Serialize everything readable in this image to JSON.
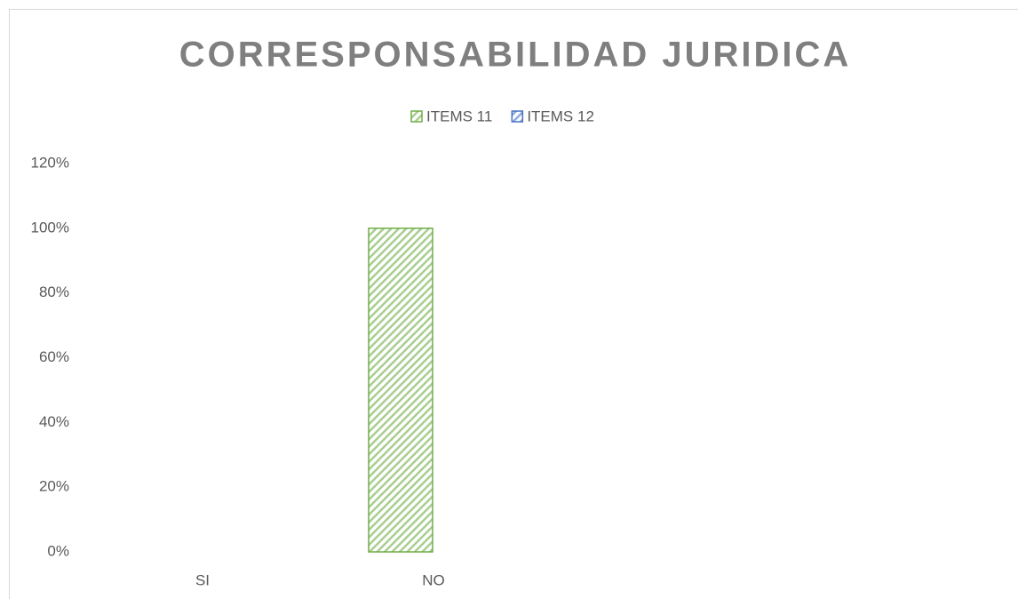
{
  "chart_data": {
    "type": "bar",
    "title": "CORRESPONSABILIDAD JURIDICA",
    "categories": [
      "SI",
      "NO",
      null,
      null
    ],
    "series": [
      {
        "name": "ITEMS 11",
        "color": "#70ad47",
        "values": [
          0,
          100,
          null,
          null
        ]
      },
      {
        "name": "ITEMS 12",
        "color": "#4472c4",
        "values": [
          0,
          0,
          null,
          null
        ]
      }
    ],
    "ylim": [
      0,
      120
    ],
    "yticks": [
      {
        "value": 0,
        "label": "0%"
      },
      {
        "value": 20,
        "label": "20%"
      },
      {
        "value": 40,
        "label": "40%"
      },
      {
        "value": 60,
        "label": "60%"
      },
      {
        "value": 80,
        "label": "80%"
      },
      {
        "value": 100,
        "label": "100%"
      },
      {
        "value": 120,
        "label": "120%"
      }
    ],
    "grid": false,
    "legend": "top"
  }
}
